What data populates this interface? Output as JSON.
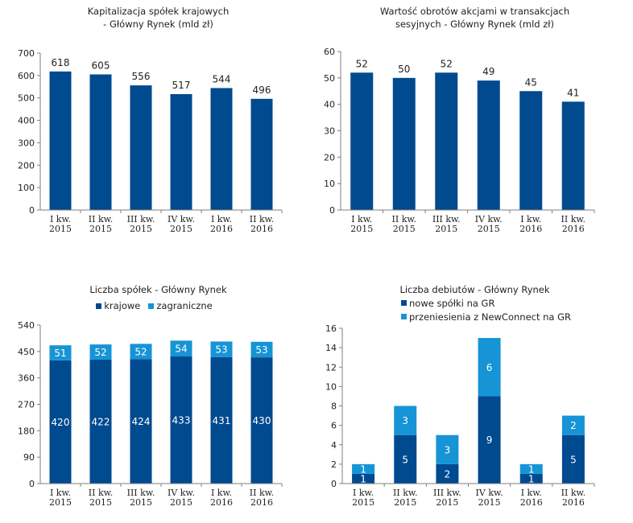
{
  "colors": {
    "primary": "#004a8f",
    "secondary": "#1694d6",
    "axis": "#7f7f7f"
  },
  "chart_data": [
    {
      "type": "bar",
      "title": "Kapitalizacja spółek krajowych\n - Główny Rynek (mld zł)",
      "categories": [
        [
          "I kw.",
          "2015"
        ],
        [
          "II kw.",
          "2015"
        ],
        [
          "III kw.",
          "2015"
        ],
        [
          "IV kw.",
          "2015"
        ],
        [
          "I kw.",
          "2016"
        ],
        [
          "II kw.",
          "2016"
        ]
      ],
      "values": [
        618,
        605,
        556,
        517,
        544,
        496
      ],
      "ylim": [
        0,
        700
      ],
      "yticks": [
        0,
        100,
        200,
        300,
        400,
        500,
        600,
        700
      ]
    },
    {
      "type": "bar",
      "title": "Wartość obrotów akcjami w transakcjach\nsesyjnych - Główny Rynek (mld zł)",
      "categories": [
        [
          "I kw.",
          "2015"
        ],
        [
          "II kw.",
          "2015"
        ],
        [
          "III kw.",
          "2015"
        ],
        [
          "IV kw.",
          "2015"
        ],
        [
          "I kw.",
          "2016"
        ],
        [
          "II kw.",
          "2016"
        ]
      ],
      "values": [
        52,
        50,
        52,
        49,
        45,
        41
      ],
      "ylim": [
        0,
        60
      ],
      "yticks": [
        0,
        10,
        20,
        30,
        40,
        50,
        60
      ]
    },
    {
      "type": "bar",
      "stacked": true,
      "title": "Liczba spółek  - Główny Rynek",
      "legend": "top",
      "categories": [
        [
          "I kw.",
          "2015"
        ],
        [
          "II kw.",
          "2015"
        ],
        [
          "III kw.",
          "2015"
        ],
        [
          "IV kw.",
          "2015"
        ],
        [
          "I kw.",
          "2016"
        ],
        [
          "II kw.",
          "2016"
        ]
      ],
      "series": [
        {
          "name": "krajowe",
          "values": [
            420,
            422,
            424,
            433,
            431,
            430
          ]
        },
        {
          "name": "zagraniczne",
          "values": [
            51,
            52,
            52,
            54,
            53,
            53
          ]
        }
      ],
      "ylim": [
        0,
        540
      ],
      "yticks": [
        0,
        90,
        180,
        270,
        360,
        450,
        540
      ]
    },
    {
      "type": "bar",
      "stacked": true,
      "title": "Liczba debiutów - Główny Rynek",
      "legend": "top-left",
      "categories": [
        [
          "I kw.",
          "2015"
        ],
        [
          "II kw.",
          "2015"
        ],
        [
          "III kw.",
          "2015"
        ],
        [
          "IV kw.",
          "2015"
        ],
        [
          "I kw.",
          "2016"
        ],
        [
          "II kw.",
          "2016"
        ]
      ],
      "series": [
        {
          "name": "nowe spółki na GR",
          "values": [
            1,
            5,
            2,
            9,
            1,
            5
          ]
        },
        {
          "name": "przeniesienia z NewConnect na GR",
          "values": [
            1,
            3,
            3,
            6,
            1,
            2
          ]
        }
      ],
      "ylim": [
        0,
        16
      ],
      "yticks": [
        0,
        2,
        4,
        6,
        8,
        10,
        12,
        14,
        16
      ]
    }
  ]
}
